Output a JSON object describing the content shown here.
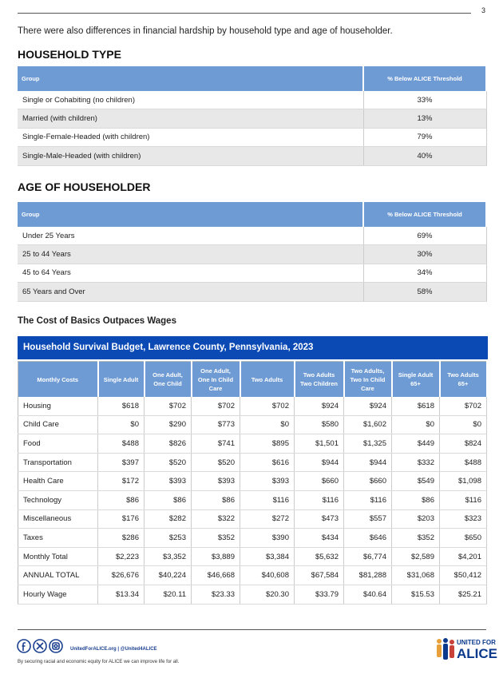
{
  "header": {
    "page_number": "3"
  },
  "intro": "There were also differences in financial hardship by household type and age of householder.",
  "household_type": {
    "title": "HOUSEHOLD TYPE",
    "columns": [
      "Group",
      "% Below ALICE Threshold"
    ],
    "rows": [
      [
        "Single or Cohabiting (no children)",
        "33%"
      ],
      [
        "Married (with children)",
        "13%"
      ],
      [
        "Single-Female-Headed (with children)",
        "79%"
      ],
      [
        "Single-Male-Headed (with children)",
        "40%"
      ]
    ]
  },
  "age_of_householder": {
    "title": "AGE OF HOUSEHOLDER",
    "columns": [
      "Group",
      "% Below ALICE Threshold"
    ],
    "rows": [
      [
        "Under 25 Years",
        "69%"
      ],
      [
        "25 to 44 Years",
        "30%"
      ],
      [
        "45 to 64 Years",
        "34%"
      ],
      [
        "65 Years and Over",
        "58%"
      ]
    ]
  },
  "budget": {
    "section_title": "The Cost of Basics Outpaces Wages",
    "title": "Household Survival Budget, Lawrence County, Pennsylvania, 2023",
    "columns": [
      "Monthly Costs",
      "Single Adult",
      "One Adult, One Child",
      "One Adult, One In Child Care",
      "Two Adults",
      "Two Adults Two Children",
      "Two Adults, Two In Child Care",
      "Single Adult 65+",
      "Two Adults 65+"
    ],
    "rows": [
      [
        "Housing",
        "$618",
        "$702",
        "$702",
        "$702",
        "$924",
        "$924",
        "$618",
        "$702"
      ],
      [
        "Child Care",
        "$0",
        "$290",
        "$773",
        "$0",
        "$580",
        "$1,602",
        "$0",
        "$0"
      ],
      [
        "Food",
        "$488",
        "$826",
        "$741",
        "$895",
        "$1,501",
        "$1,325",
        "$449",
        "$824"
      ],
      [
        "Transportation",
        "$397",
        "$520",
        "$520",
        "$616",
        "$944",
        "$944",
        "$332",
        "$488"
      ],
      [
        "Health Care",
        "$172",
        "$393",
        "$393",
        "$393",
        "$660",
        "$660",
        "$549",
        "$1,098"
      ],
      [
        "Technology",
        "$86",
        "$86",
        "$86",
        "$116",
        "$116",
        "$116",
        "$86",
        "$116"
      ],
      [
        "Miscellaneous",
        "$176",
        "$282",
        "$322",
        "$272",
        "$473",
        "$557",
        "$203",
        "$323"
      ],
      [
        "Taxes",
        "$286",
        "$253",
        "$352",
        "$390",
        "$434",
        "$646",
        "$352",
        "$650"
      ],
      [
        "Monthly Total",
        "$2,223",
        "$3,352",
        "$3,889",
        "$3,384",
        "$5,632",
        "$6,774",
        "$2,589",
        "$4,201"
      ],
      [
        "ANNUAL TOTAL",
        "$26,676",
        "$40,224",
        "$46,668",
        "$40,608",
        "$67,584",
        "$81,288",
        "$31,068",
        "$50,412"
      ],
      [
        "Hourly Wage",
        "$13.34",
        "$20.11",
        "$23.33",
        "$20.30",
        "$33.79",
        "$40.64",
        "$15.53",
        "$25.21"
      ]
    ]
  },
  "footer": {
    "links": "UnitedForALICE.org | @United4ALICE",
    "tagline": "By securing racial and economic equity for ALICE we can improve life for all.",
    "logo": [
      "UNITED FOR",
      "ALICE"
    ]
  }
}
